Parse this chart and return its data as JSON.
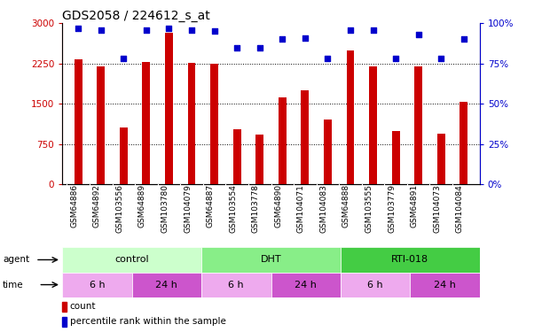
{
  "title": "GDS2058 / 224612_s_at",
  "samples": [
    "GSM64886",
    "GSM64892",
    "GSM103556",
    "GSM64889",
    "GSM103780",
    "GSM104079",
    "GSM64887",
    "GSM103554",
    "GSM103778",
    "GSM64890",
    "GSM104071",
    "GSM104083",
    "GSM64888",
    "GSM103555",
    "GSM103779",
    "GSM64891",
    "GSM104073",
    "GSM104084"
  ],
  "counts": [
    2320,
    2200,
    1050,
    2280,
    2830,
    2260,
    2240,
    1020,
    930,
    1620,
    1750,
    1200,
    2500,
    2200,
    1000,
    2190,
    950,
    1530
  ],
  "percentiles": [
    97,
    96,
    78,
    96,
    97,
    96,
    95,
    85,
    85,
    90,
    91,
    78,
    96,
    96,
    78,
    93,
    78,
    90
  ],
  "bar_color": "#CC0000",
  "dot_color": "#0000CC",
  "ylim_left": [
    0,
    3000
  ],
  "ylim_right": [
    0,
    100
  ],
  "yticks_left": [
    0,
    750,
    1500,
    2250,
    3000
  ],
  "ytick_labels_left": [
    "0",
    "750",
    "1500",
    "2250",
    "3000"
  ],
  "yticks_right": [
    0,
    25,
    50,
    75,
    100
  ],
  "ytick_labels_right": [
    "0%",
    "25%",
    "50%",
    "75%",
    "100%"
  ],
  "agent_groups": [
    {
      "label": "control",
      "start": 0,
      "end": 6,
      "color": "#CCFFCC"
    },
    {
      "label": "DHT",
      "start": 6,
      "end": 12,
      "color": "#88EE88"
    },
    {
      "label": "RTI-018",
      "start": 12,
      "end": 18,
      "color": "#44CC44"
    }
  ],
  "time_groups": [
    {
      "label": "6 h",
      "start": 0,
      "end": 3,
      "color": "#EEAAEE"
    },
    {
      "label": "24 h",
      "start": 3,
      "end": 6,
      "color": "#CC55CC"
    },
    {
      "label": "6 h",
      "start": 6,
      "end": 9,
      "color": "#EEAAEE"
    },
    {
      "label": "24 h",
      "start": 9,
      "end": 12,
      "color": "#CC55CC"
    },
    {
      "label": "6 h",
      "start": 12,
      "end": 15,
      "color": "#EEAAEE"
    },
    {
      "label": "24 h",
      "start": 15,
      "end": 18,
      "color": "#CC55CC"
    }
  ],
  "legend_count_color": "#CC0000",
  "legend_dot_color": "#0000CC",
  "tick_label_color_left": "#CC0000",
  "tick_label_color_right": "#0000CC",
  "title_fontsize": 10,
  "bar_width": 0.35
}
